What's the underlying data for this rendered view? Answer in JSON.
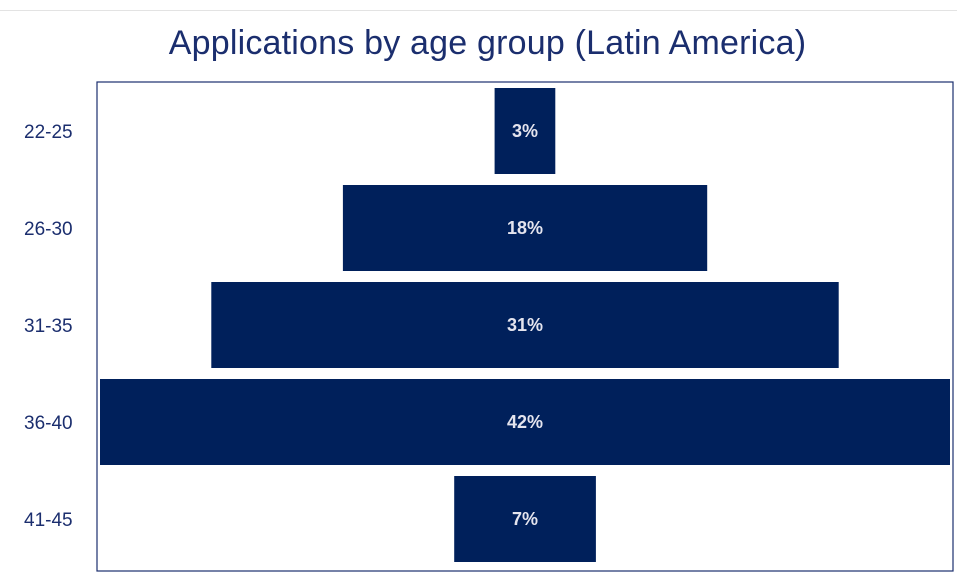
{
  "chart_data": {
    "type": "bar",
    "orientation": "horizontal",
    "style": "funnel-centered",
    "title": "Applications by age group (Latin America)",
    "xlabel": "",
    "ylabel": "",
    "categories": [
      "22-25",
      "26-30",
      "31-35",
      "36-40",
      "41-45"
    ],
    "values": [
      3,
      18,
      31,
      42,
      7
    ],
    "data_labels": [
      "3%",
      "18%",
      "31%",
      "42%",
      "7%"
    ],
    "unit": "%",
    "grid": false,
    "legend": "none",
    "colors": {
      "bar": "#00205b",
      "title": "#1b2e6e",
      "axis_text": "#1b2e6e",
      "frame": "#1b2e6e",
      "data_label": "#e4e4ee"
    }
  }
}
